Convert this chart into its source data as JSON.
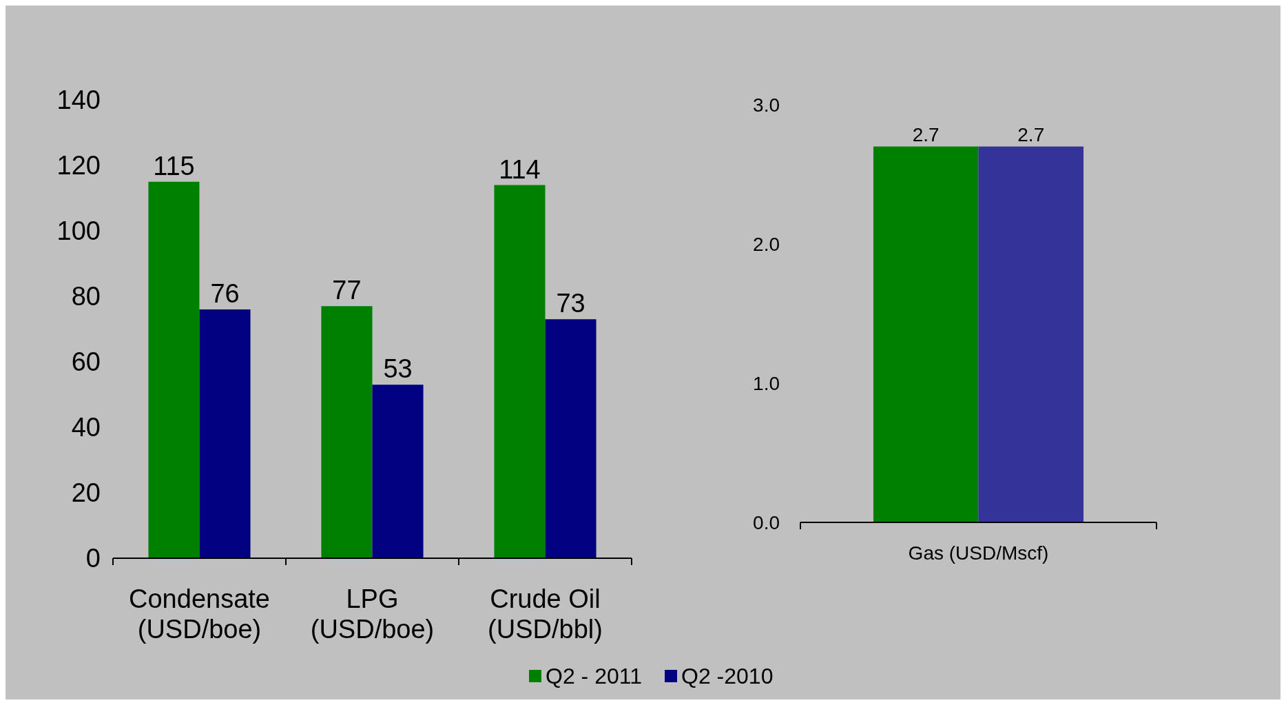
{
  "chart_data": [
    {
      "type": "bar",
      "categories": [
        "Condensate (USD/boe)",
        "LPG (USD/boe)",
        "Crude Oil (USD/bbl)"
      ],
      "series": [
        {
          "name": "Q2 - 2011",
          "color": "#008000",
          "values": [
            115,
            77,
            114
          ]
        },
        {
          "name": "Q2 -2010",
          "color": "#000080",
          "values": [
            76,
            53,
            73
          ]
        }
      ],
      "ylim": [
        0,
        140
      ],
      "yticks": [
        0,
        20,
        40,
        60,
        80,
        100,
        120,
        140
      ],
      "data_labels": true,
      "legend": "bottom"
    },
    {
      "type": "bar",
      "categories": [
        "Gas (USD/Mscf)"
      ],
      "series": [
        {
          "color": "#008000",
          "values": [
            2.7
          ]
        },
        {
          "color": "#333399",
          "values": [
            2.7
          ]
        }
      ],
      "ylim": [
        0,
        3
      ],
      "yticks": [
        {
          "value": 0,
          "label": "0.0"
        },
        {
          "value": 1,
          "label": "1.0"
        },
        {
          "value": 2,
          "label": "2.0"
        },
        {
          "value": 3,
          "label": "3.0"
        }
      ],
      "data_labels": true
    }
  ]
}
